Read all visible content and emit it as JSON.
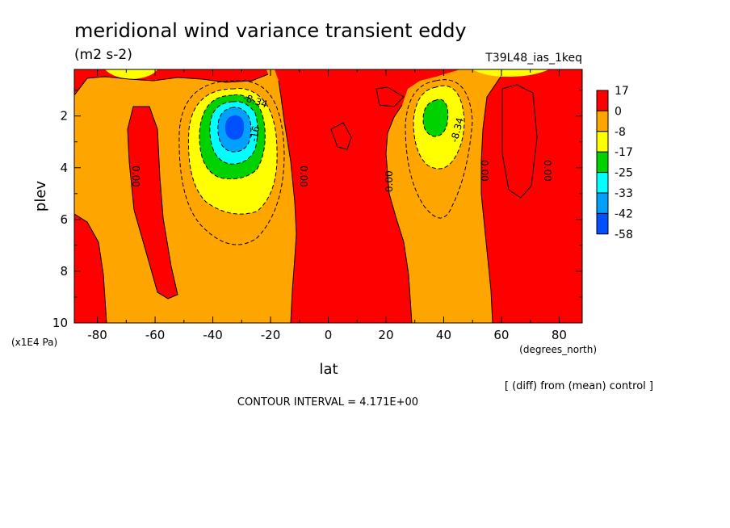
{
  "chart_data": {
    "type": "heatmap",
    "title": "meridional wind variance transient eddy",
    "units": "(m2 s-2)",
    "run_label": "T39L48_ias_1keq",
    "xlabel": "lat",
    "x_units": "(degrees_north)",
    "ylabel": "plev",
    "y_units": "(x1E4 Pa)",
    "xlim": [
      -88,
      88
    ],
    "ylim": [
      10,
      0.2
    ],
    "x_ticks": [
      -80,
      -60,
      -40,
      -20,
      0,
      20,
      40,
      60,
      80
    ],
    "y_ticks": [
      2,
      4,
      6,
      8,
      10
    ],
    "x_tick_labels": [
      "-80",
      "-60",
      "-40",
      "-20",
      "0",
      "20",
      "40",
      "60",
      "80"
    ],
    "y_tick_labels": [
      "2",
      "4",
      "6",
      "8",
      "10"
    ],
    "diff_note": "[ (diff) from (mean) control ]",
    "contour_interval_text": "CONTOUR INTERVAL = 4.171E+00",
    "contour_labels": [
      "-8.34",
      "-16",
      "0.00",
      "0.00",
      "0.00",
      "-8.34",
      "0.00",
      "0.00"
    ],
    "legend": {
      "levels": [
        "17",
        "0",
        "-8",
        "-17",
        "-25",
        "-33",
        "-42",
        "-58"
      ],
      "colors": [
        "#ff0000",
        "#ffa500",
        "#ffff00",
        "#00d200",
        "#00ffff",
        "#00a0ff",
        "#0050ff"
      ]
    },
    "field_colors": {
      "positive": "#ff0000",
      "zero_to_m8": "#ffa500",
      "m8_to_m17": "#ffff00",
      "m17_to_m25": "#00d200",
      "m25_to_m33": "#00ffff",
      "m33_to_m42": "#00a0ff",
      "m42_to_m58": "#0050ff"
    },
    "features": [
      {
        "kind": "minimum",
        "lat": -33,
        "plev": 2.3,
        "value": -50
      },
      {
        "kind": "minimum",
        "lat": 37,
        "plev": 2.0,
        "value": -20
      }
    ]
  }
}
